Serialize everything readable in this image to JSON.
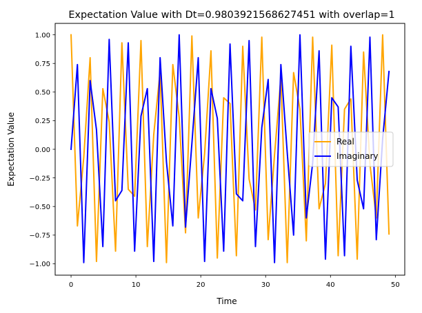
{
  "chart_data": {
    "type": "line",
    "title": "Expectation Value with Dt=0.9803921568627451 with overlap=1",
    "xlabel": "Time",
    "ylabel": "Expectation Value",
    "xlim": [
      -2.45,
      51.45
    ],
    "ylim": [
      -1.1,
      1.1
    ],
    "xticks": [
      0,
      10,
      20,
      30,
      40,
      50
    ],
    "yticks": [
      -1.0,
      -0.75,
      -0.5,
      -0.25,
      0.0,
      0.25,
      0.5,
      0.75,
      1.0
    ],
    "xtick_labels": [
      "0",
      "10",
      "20",
      "30",
      "40",
      "50"
    ],
    "ytick_labels": [
      "−1.00",
      "−0.75",
      "−0.50",
      "−0.25",
      "0.00",
      "0.25",
      "0.50",
      "0.75",
      "1.00"
    ],
    "grid": false,
    "legend": {
      "placement": "center-right"
    },
    "x": [
      0,
      0.98,
      1.96,
      2.94,
      3.92,
      4.9,
      5.88,
      6.86,
      7.84,
      8.82,
      9.8,
      10.78,
      11.76,
      12.75,
      13.73,
      14.71,
      15.69,
      16.67,
      17.65,
      18.63,
      19.61,
      20.59,
      21.57,
      22.55,
      23.53,
      24.51,
      25.49,
      26.47,
      27.45,
      28.43,
      29.41,
      30.39,
      31.37,
      32.35,
      33.33,
      34.31,
      35.29,
      36.27,
      37.25,
      38.24,
      39.22,
      40.2,
      41.18,
      42.16,
      43.14,
      44.12,
      45.1,
      46.08,
      47.06,
      48.04,
      49.02
    ],
    "series": [
      {
        "name": "Real",
        "color": "#ffa500",
        "values": [
          1.0,
          -0.67,
          -0.07,
          0.8,
          -0.98,
          0.53,
          0.24,
          -0.89,
          0.93,
          -0.35,
          -0.41,
          0.95,
          -0.85,
          0.13,
          0.68,
          -0.99,
          0.74,
          0.28,
          -0.73,
          0.99,
          -0.6,
          -0.04,
          0.86,
          -0.95,
          0.45,
          0.4,
          -0.93,
          0.9,
          -0.26,
          -0.53,
          0.98,
          -0.79,
          -0.05,
          0.63,
          -0.99,
          0.67,
          0.35,
          -0.8,
          0.98,
          -0.52,
          -0.3,
          0.91,
          -0.93,
          0.35,
          0.44,
          -0.96,
          0.85,
          -0.13,
          -0.6,
          1.0,
          -0.74
        ]
      },
      {
        "name": "Imaginary",
        "color": "#0000ff",
        "values": [
          0.0,
          0.74,
          -0.99,
          0.6,
          0.17,
          -0.85,
          0.96,
          -0.45,
          -0.36,
          0.93,
          -0.89,
          0.29,
          0.53,
          -0.98,
          0.8,
          -0.11,
          -0.67,
          1.0,
          -0.68,
          0.05,
          0.8,
          -0.98,
          0.53,
          0.27,
          -0.89,
          0.92,
          -0.39,
          -0.45,
          0.95,
          -0.85,
          0.19,
          0.61,
          -0.99,
          0.74,
          -0.03,
          -0.75,
          1.0,
          -0.6,
          -0.12,
          0.86,
          -0.96,
          0.45,
          0.37,
          -0.93,
          0.9,
          -0.27,
          -0.52,
          0.98,
          -0.79,
          0.09,
          0.68
        ]
      }
    ]
  }
}
